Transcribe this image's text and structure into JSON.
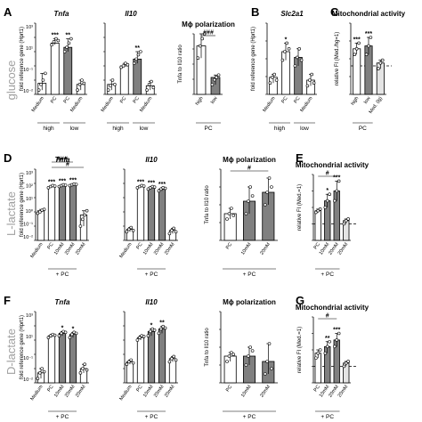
{
  "row_labels": [
    "glucose",
    "L-lactate",
    "D-lactate"
  ],
  "chart_data": [
    {
      "id": "A1",
      "type": "bar",
      "letter": "A",
      "title": "Tnfa",
      "title_style": "italic",
      "ylabel": "fold reference gene (Hprt1)",
      "yscale": "log",
      "ylim": [
        0.01,
        1000
      ],
      "ytick_labels": [
        "10³",
        "10¹",
        "10⁻¹",
        "10⁻²"
      ],
      "categories": [
        "Medium",
        "PC",
        "PC",
        "Medium"
      ],
      "values": [
        0.06,
        40,
        20,
        0.05
      ],
      "fills": [
        "#ffffff",
        "#ffffff",
        "#808080",
        "#ffffff"
      ],
      "points": [
        [
          0.02,
          0.05,
          0.1,
          0.3
        ],
        [
          30,
          50,
          80,
          60
        ],
        [
          10,
          20,
          40,
          80
        ],
        [
          0.02,
          0.05,
          0.1,
          0.06
        ]
      ],
      "significance": [
        "",
        "***",
        "**",
        ""
      ],
      "group_labels": [
        {
          "label": "high",
          "span": [
            0,
            1
          ]
        },
        {
          "label": "low",
          "span": [
            2,
            3
          ]
        }
      ]
    },
    {
      "id": "A2",
      "type": "bar",
      "title": "Il10",
      "title_style": "italic",
      "ylabel": "",
      "yscale": "log",
      "ylim": [
        0.01,
        1000
      ],
      "ytick_labels": [],
      "categories": [
        "Medium",
        "PC",
        "PC",
        "Medium"
      ],
      "values": [
        0.05,
        1,
        3,
        0.04
      ],
      "fills": [
        "#ffffff",
        "#ffffff",
        "#808080",
        "#ffffff"
      ],
      "points": [
        [
          0.02,
          0.04,
          0.1,
          0.05
        ],
        [
          0.8,
          1,
          1.5,
          1.2
        ],
        [
          1.5,
          3,
          6,
          10
        ],
        [
          0.02,
          0.05,
          0.08,
          0.03
        ]
      ],
      "significance": [
        "",
        "",
        "**",
        ""
      ],
      "group_labels": [
        {
          "label": "high",
          "span": [
            0,
            1
          ]
        },
        {
          "label": "low",
          "span": [
            2,
            3
          ]
        }
      ]
    },
    {
      "id": "A3",
      "type": "bar",
      "title": "Mϕ polarization",
      "title_style": "normal",
      "ylabel": "Tnfa to Il10 ratio",
      "yscale": "linear",
      "ylim": [
        0,
        25
      ],
      "ytick_labels": [],
      "categories": [
        "high",
        "low"
      ],
      "values": [
        20,
        7
      ],
      "fills": [
        "#ffffff",
        "#808080"
      ],
      "points": [
        [
          15,
          20,
          23,
          25
        ],
        [
          4,
          6,
          7,
          8
        ]
      ],
      "significance": [
        "",
        ""
      ],
      "bracket": "###",
      "bracket_span": [
        0,
        1
      ],
      "group_labels": [
        {
          "label": "PC",
          "span": [
            0,
            1
          ]
        }
      ]
    },
    {
      "id": "B",
      "type": "bar",
      "letter": "B",
      "title": "Slc2a1",
      "title_style": "italic",
      "ylabel": "fold reference gene (Hprt1)",
      "yscale": "linear",
      "ylim": [
        0,
        2.5
      ],
      "ytick_labels": [],
      "categories": [
        "Medium",
        "PC",
        "PC",
        "Medium"
      ],
      "values": [
        0.6,
        1.5,
        1.3,
        0.5
      ],
      "fills": [
        "#ffffff",
        "#ffffff",
        "#808080",
        "#ffffff"
      ],
      "points": [
        [
          0.4,
          0.6,
          0.7,
          0.5
        ],
        [
          1.2,
          1.5,
          1.8,
          1.6
        ],
        [
          1.0,
          1.3,
          1.6,
          1.2
        ],
        [
          0.3,
          0.5,
          0.7,
          0.4
        ]
      ],
      "significance": [
        "",
        "*",
        "",
        ""
      ],
      "group_labels": [
        {
          "label": "high",
          "span": [
            0,
            1
          ]
        },
        {
          "label": "low",
          "span": [
            2,
            3
          ]
        }
      ]
    },
    {
      "id": "C",
      "type": "bar",
      "letter": "C",
      "title": "Mitochondrial activity",
      "title_style": "normal",
      "ylabel": "relative FI (Med./hg=1)",
      "yscale": "linear",
      "ylim": [
        0,
        2.5
      ],
      "ytick_labels": [],
      "categories": [
        "high",
        "low",
        "Med. (lg)"
      ],
      "values": [
        1.6,
        1.7,
        1.1
      ],
      "fills": [
        "#ffffff",
        "#808080",
        "#e4e4e4"
      ],
      "points": [
        [
          1.4,
          1.6,
          1.8
        ],
        [
          1.4,
          1.7,
          2.0
        ],
        [
          0.9,
          1.1,
          1.2
        ]
      ],
      "significance": [
        "***",
        "***",
        ""
      ],
      "refline": 1,
      "group_labels": [
        {
          "label": "PC",
          "span": [
            0,
            1
          ]
        }
      ]
    },
    {
      "id": "D1",
      "type": "bar",
      "letter": "D",
      "title": "Tnfa",
      "title_style": "italic",
      "ylabel": "fold reference gene (Hprt1)",
      "yscale": "log",
      "ylim": [
        0.01,
        1000
      ],
      "ytick_labels": [
        "10³",
        "10²",
        "10¹",
        "10⁰",
        "10⁻¹",
        "10⁻²"
      ],
      "categories": [
        "Medium",
        "PC",
        "10mM",
        "20mM",
        "20mM"
      ],
      "values": [
        1.2,
        60,
        70,
        80,
        0.6
      ],
      "fills": [
        "#ffffff",
        "#ffffff",
        "#808080",
        "#808080",
        "#ffffff"
      ],
      "points": [
        [
          0.8,
          1,
          1.3,
          1.5
        ],
        [
          50,
          60,
          70,
          65
        ],
        [
          60,
          70,
          80,
          75
        ],
        [
          70,
          80,
          90,
          85
        ],
        [
          0.1,
          0.3,
          0.6,
          1.2
        ]
      ],
      "significance": [
        "",
        "***",
        "***",
        "***",
        ""
      ],
      "brackets": [
        "###",
        "#"
      ],
      "group_labels": [
        {
          "label": "+ PC",
          "span": [
            1,
            3
          ]
        }
      ]
    },
    {
      "id": "D2",
      "type": "bar",
      "title": "Il10",
      "title_style": "italic",
      "ylabel": "",
      "yscale": "log",
      "ylim": [
        0.01,
        1000
      ],
      "ytick_labels": [],
      "categories": [
        "Medium",
        "PC",
        "10mM",
        "20mM",
        "20mM"
      ],
      "values": [
        0.06,
        60,
        50,
        40,
        0.05
      ],
      "fills": [
        "#ffffff",
        "#ffffff",
        "#808080",
        "#808080",
        "#ffffff"
      ],
      "points": [
        [
          0.04,
          0.06,
          0.08,
          0.05
        ],
        [
          50,
          60,
          70,
          65
        ],
        [
          40,
          50,
          60,
          55
        ],
        [
          30,
          40,
          50,
          45
        ],
        [
          0.03,
          0.05,
          0.07,
          0.04
        ]
      ],
      "significance": [
        "",
        "***",
        "***",
        "***",
        ""
      ],
      "group_labels": [
        {
          "label": "+ PC",
          "span": [
            1,
            3
          ]
        }
      ]
    },
    {
      "id": "D3",
      "type": "bar",
      "title": "Mϕ polarization",
      "title_style": "normal",
      "ylabel": "Tnfa to Il10 ratio",
      "yscale": "linear",
      "ylim": [
        0,
        40
      ],
      "ytick_labels": [],
      "categories": [
        "PC",
        "10mM",
        "20mM"
      ],
      "values": [
        15,
        22,
        27
      ],
      "fills": [
        "#ffffff",
        "#808080",
        "#808080"
      ],
      "points": [
        [
          12,
          15,
          18,
          14
        ],
        [
          15,
          22,
          30,
          25
        ],
        [
          20,
          27,
          35,
          30
        ]
      ],
      "significance": [
        "",
        "",
        ""
      ],
      "bracket": "#",
      "bracket_span": [
        0,
        2
      ],
      "group_labels": [
        {
          "label": "+ PC",
          "span": [
            0,
            2
          ]
        }
      ]
    },
    {
      "id": "E",
      "type": "bar",
      "letter": "E",
      "title": "Mitochondrial activity",
      "title_style": "normal",
      "ylabel": "relative FI (Med.=1)",
      "yscale": "linear",
      "ylim": [
        0,
        4
      ],
      "ytick_labels": [],
      "categories": [
        "PC",
        "10mM",
        "20mM",
        "20mM"
      ],
      "values": [
        1.8,
        2.4,
        3.0,
        1.2
      ],
      "fills": [
        "#ffffff",
        "#808080",
        "#808080",
        "#e4e4e4"
      ],
      "points": [
        [
          1.7,
          1.8,
          1.9
        ],
        [
          2.0,
          2.4,
          2.8
        ],
        [
          2.4,
          3.0,
          3.6
        ],
        [
          1.0,
          1.2,
          1.3
        ]
      ],
      "significance": [
        "",
        "*",
        "***",
        ""
      ],
      "refline": 1,
      "bracket": "#",
      "bracket_span": [
        0,
        2
      ],
      "group_labels": [
        {
          "label": "+ PC",
          "span": [
            0,
            2
          ]
        }
      ]
    },
    {
      "id": "F1",
      "type": "bar",
      "letter": "F",
      "title": "Tnfa",
      "title_style": "italic",
      "ylabel": "fold reference gene (Hprt1)",
      "yscale": "log",
      "ylim": [
        0.01,
        1000
      ],
      "ytick_labels": [
        "10³",
        "10¹",
        "10⁻¹",
        "10⁻²"
      ],
      "categories": [
        "Medium",
        "PC",
        "10mM",
        "20mM",
        "20mM"
      ],
      "values": [
        0.05,
        20,
        30,
        25,
        0.1
      ],
      "fills": [
        "#ffffff",
        "#ffffff",
        "#808080",
        "#808080",
        "#ffffff"
      ],
      "points": [
        [
          0.02,
          0.05,
          0.1,
          0.06
        ],
        [
          15,
          20,
          25,
          22
        ],
        [
          20,
          30,
          40,
          35
        ],
        [
          15,
          25,
          35,
          30
        ],
        [
          0.05,
          0.1,
          0.2,
          0.08
        ]
      ],
      "significance": [
        "",
        "",
        "*",
        "*",
        ""
      ],
      "group_labels": [
        {
          "label": "+ PC",
          "span": [
            1,
            3
          ]
        }
      ]
    },
    {
      "id": "F2",
      "type": "bar",
      "title": "Il10",
      "title_style": "italic",
      "ylabel": "",
      "yscale": "log",
      "ylim": [
        0.01,
        1000
      ],
      "ytick_labels": [],
      "categories": [
        "Medium",
        "PC",
        "10mM",
        "20mM",
        "20mM"
      ],
      "values": [
        0.3,
        15,
        40,
        60,
        0.5
      ],
      "fills": [
        "#ffffff",
        "#ffffff",
        "#808080",
        "#808080",
        "#ffffff"
      ],
      "points": [
        [
          0.2,
          0.3,
          0.4,
          0.25
        ],
        [
          10,
          15,
          20,
          18
        ],
        [
          20,
          40,
          60,
          50
        ],
        [
          30,
          60,
          90,
          70
        ],
        [
          0.3,
          0.5,
          0.7,
          0.4
        ]
      ],
      "significance": [
        "",
        "",
        "*",
        "**",
        ""
      ],
      "group_labels": [
        {
          "label": "+ PC",
          "span": [
            1,
            3
          ]
        }
      ]
    },
    {
      "id": "F3",
      "type": "bar",
      "title": "Mϕ polarization",
      "title_style": "normal",
      "ylabel": "Tnfa to Il10 ratio",
      "yscale": "linear",
      "ylim": [
        0,
        40
      ],
      "ytick_labels": [],
      "categories": [
        "PC",
        "10mM",
        "20mM"
      ],
      "values": [
        15,
        15,
        12
      ],
      "fills": [
        "#ffffff",
        "#808080",
        "#808080"
      ],
      "points": [
        [
          12,
          15,
          17,
          16
        ],
        [
          10,
          15,
          20,
          18
        ],
        [
          5,
          12,
          22,
          8
        ]
      ],
      "significance": [
        "",
        "",
        ""
      ],
      "group_labels": [
        {
          "label": "+ PC",
          "span": [
            0,
            2
          ]
        }
      ]
    },
    {
      "id": "G",
      "type": "bar",
      "letter": "G",
      "title": "Mitochondrial activity",
      "title_style": "normal",
      "ylabel": "relative FI (Med.=1)",
      "yscale": "linear",
      "ylim": [
        0,
        4
      ],
      "ytick_labels": [],
      "categories": [
        "PC",
        "10mM",
        "20mM",
        "20mM"
      ],
      "values": [
        1.8,
        2.2,
        2.6,
        1.2
      ],
      "fills": [
        "#ffffff",
        "#808080",
        "#808080",
        "#e4e4e4"
      ],
      "points": [
        [
          1.5,
          1.8,
          2.0
        ],
        [
          1.8,
          2.2,
          2.5
        ],
        [
          2.2,
          2.6,
          3.0
        ],
        [
          1.0,
          1.2,
          1.3
        ]
      ],
      "significance": [
        "",
        "**",
        "***",
        ""
      ],
      "refline": 1,
      "bracket": "#",
      "bracket_span": [
        0,
        2
      ],
      "group_labels": [
        {
          "label": "+ PC",
          "span": [
            0,
            2
          ]
        }
      ]
    }
  ]
}
